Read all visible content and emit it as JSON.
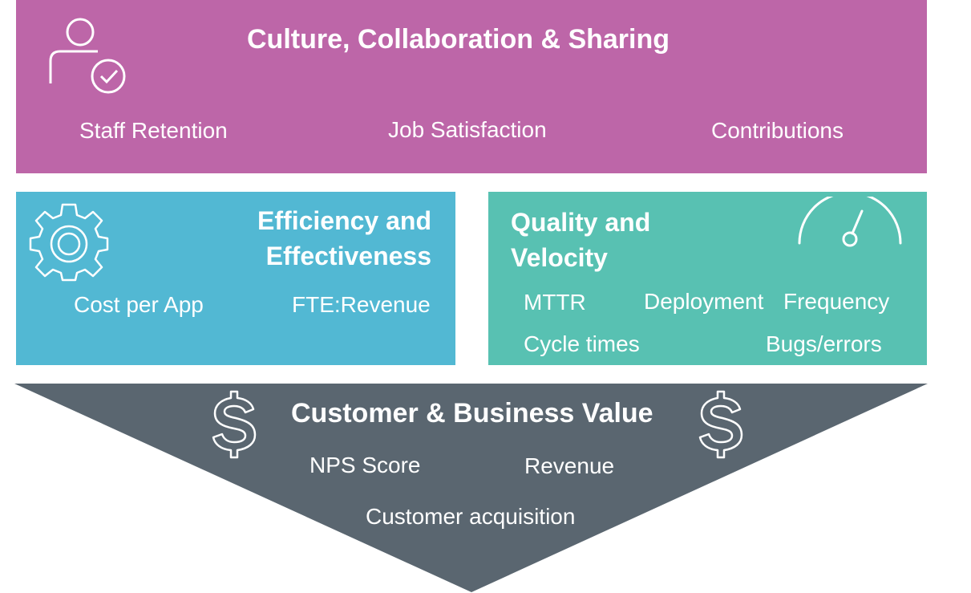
{
  "culture": {
    "title": "Culture, Collaboration & Sharing",
    "items": [
      "Staff Retention",
      "Job Satisfaction",
      "Contributions"
    ],
    "color": "#bd66a8",
    "icon": "user-check-icon"
  },
  "efficiency": {
    "title_line1": "Efficiency and",
    "title_line2": "Effectiveness",
    "items": [
      "Cost per App",
      "FTE:Revenue"
    ],
    "color": "#52b8d3",
    "icon": "gear-icon"
  },
  "quality": {
    "title_line1": "Quality and",
    "title_line2": "Velocity",
    "items": [
      "MTTR",
      "Deployment",
      "Frequency",
      "Cycle times",
      "Bugs/errors"
    ],
    "color": "#58c1b2",
    "icon": "gauge-icon"
  },
  "value": {
    "title": "Customer & Business Value",
    "items": [
      "NPS Score",
      "Revenue",
      "Customer acquisition"
    ],
    "color": "#5a6670",
    "icon": "dollar-icon"
  }
}
